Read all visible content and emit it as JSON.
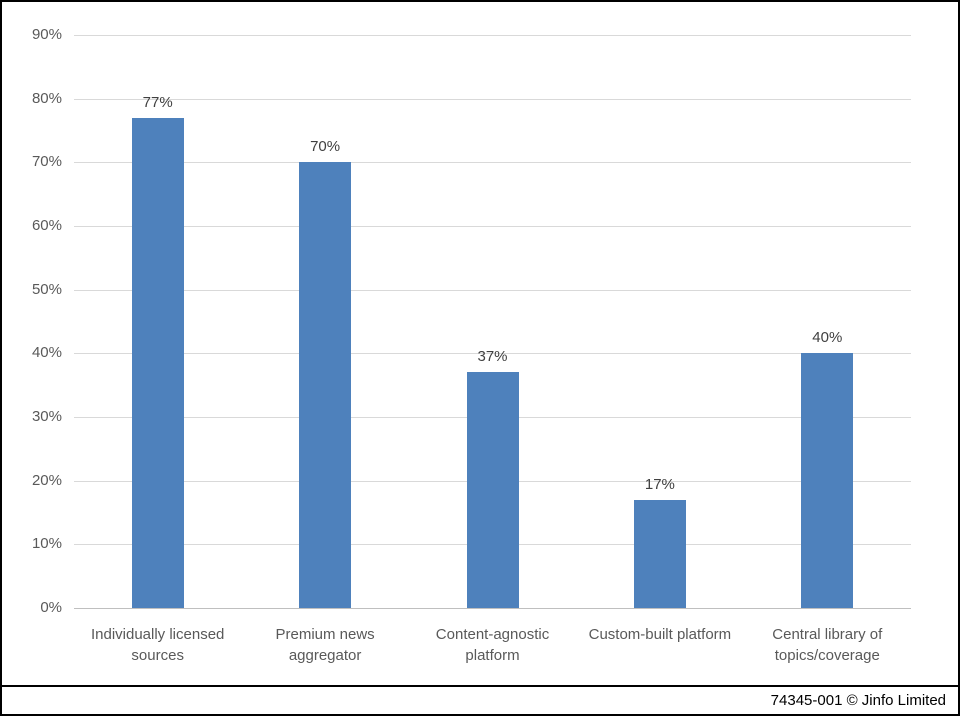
{
  "chart_data": {
    "type": "bar",
    "categories": [
      "Individually licensed sources",
      "Premium news aggregator",
      "Content-agnostic platform",
      "Custom-built platform",
      "Central library of topics/coverage"
    ],
    "values": [
      77,
      70,
      37,
      17,
      40
    ],
    "value_labels": [
      "77%",
      "70%",
      "37%",
      "17%",
      "40%"
    ],
    "title": "",
    "xlabel": "",
    "ylabel": "",
    "ylim": [
      0,
      90
    ],
    "y_tick_step": 10,
    "y_tick_labels": [
      "0%",
      "10%",
      "20%",
      "30%",
      "40%",
      "50%",
      "60%",
      "70%",
      "80%",
      "90%"
    ],
    "grid": true,
    "legend_position": "none",
    "bar_color": "#4e81bc",
    "gridline_color": "#d9d9d9",
    "axis_text_color": "#595959",
    "value_label_color": "#404040"
  },
  "footer": {
    "credit": "74345-001 © Jinfo Limited"
  }
}
